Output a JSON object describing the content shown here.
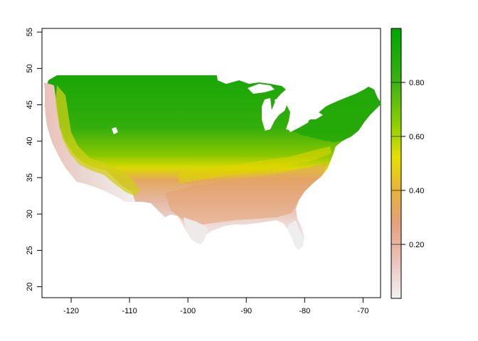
{
  "map": {
    "type": "raster",
    "x_axis": {
      "range": [
        -125,
        -67
      ],
      "ticks": [
        -120,
        -110,
        -100,
        -90,
        -80,
        -70
      ],
      "tick_labels": [
        "-120",
        "-110",
        "-100",
        "-90",
        "-80",
        "-70"
      ]
    },
    "y_axis": {
      "range": [
        18.5,
        55.5
      ],
      "ticks": [
        20,
        25,
        30,
        35,
        40,
        45,
        50,
        55
      ],
      "tick_labels": [
        "20",
        "25",
        "30",
        "35",
        "40",
        "45",
        "50",
        "55"
      ]
    },
    "legend": {
      "position": "right",
      "range": [
        0,
        1
      ],
      "ticks": [
        0.2,
        0.4,
        0.6,
        0.8
      ],
      "tick_labels": [
        "0.20",
        "0.40",
        "0.60",
        "0.80"
      ],
      "colors": [
        "#f2f2f2",
        "#ebb5b0",
        "#e69a5c",
        "#eab23c",
        "#e6e600",
        "#8ed100",
        "#3cb214",
        "#00a600"
      ]
    }
  }
}
